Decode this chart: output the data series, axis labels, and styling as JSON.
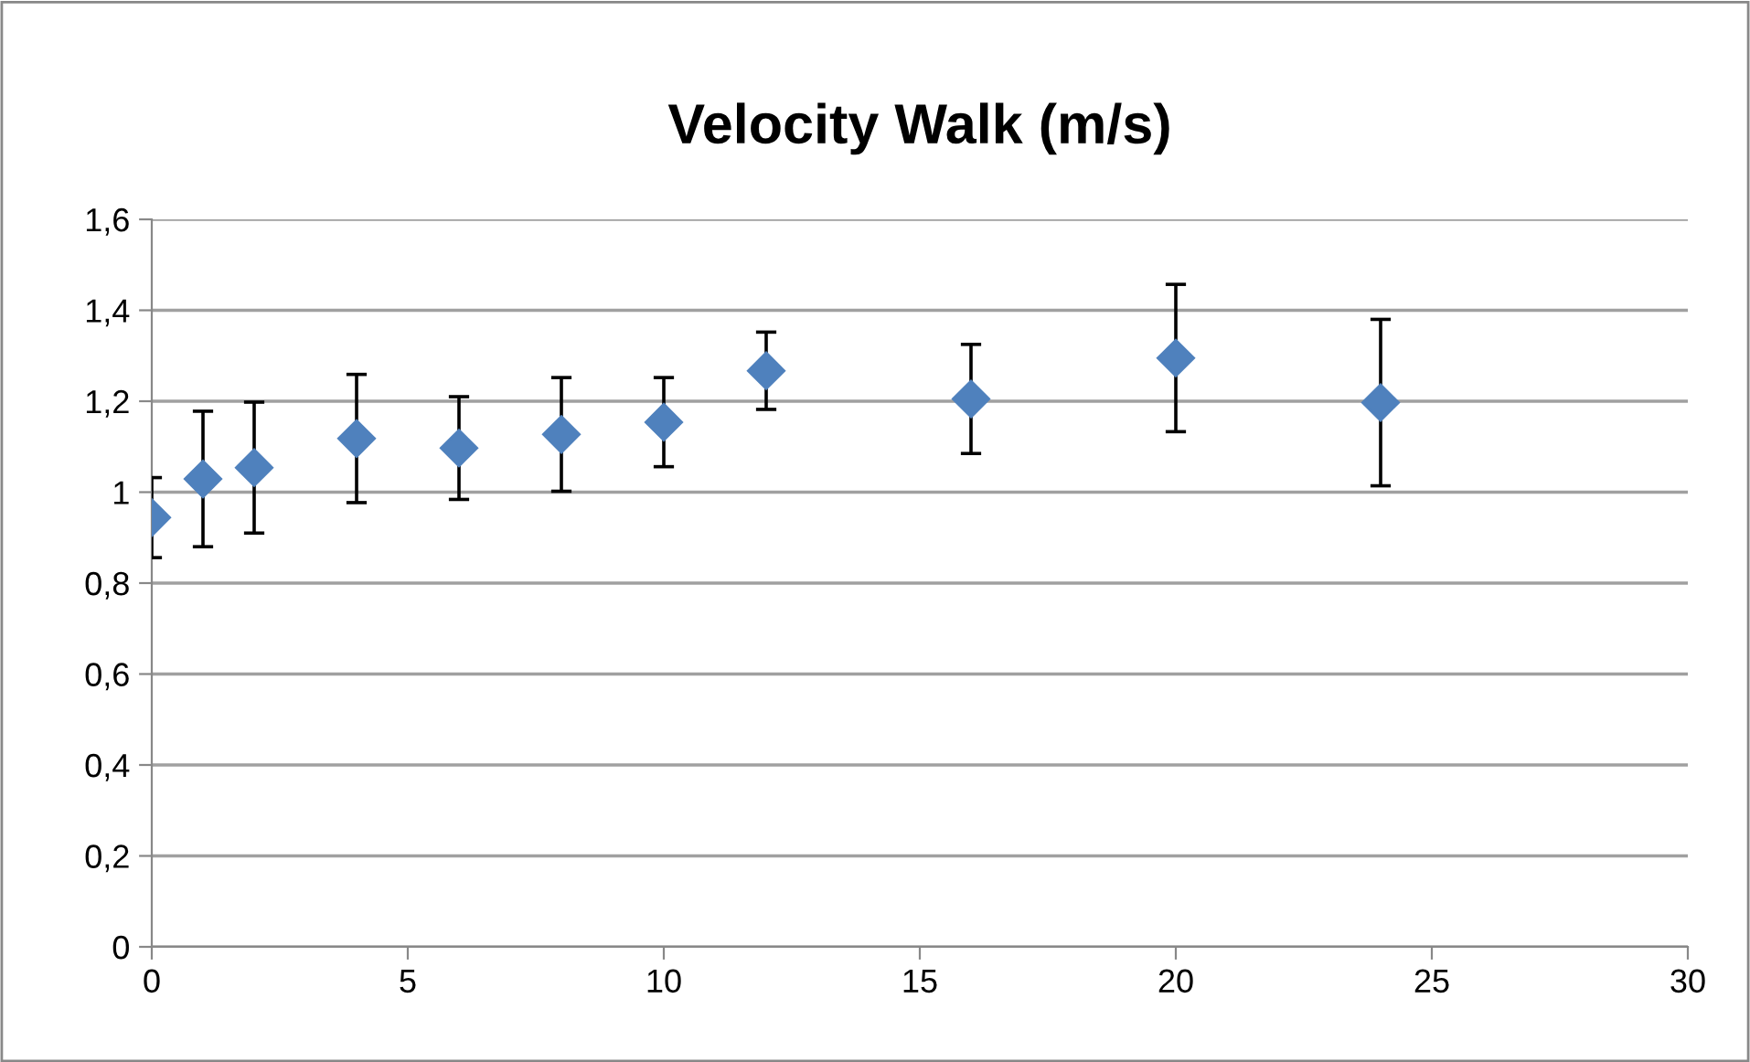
{
  "chart_data": {
    "type": "scatter",
    "title": "Velocity Walk (m/s)",
    "x": [
      0,
      1,
      2,
      4,
      6,
      8,
      10,
      12,
      16,
      20,
      24
    ],
    "series": [
      {
        "color": "#4f81bd",
        "values": [
          0.944,
          1.029,
          1.054,
          1.118,
          1.097,
          1.127,
          1.154,
          1.267,
          1.205,
          1.295,
          1.197
        ],
        "errors": [
          0.088,
          0.149,
          0.144,
          0.141,
          0.113,
          0.125,
          0.098,
          0.085,
          0.12,
          0.162,
          0.183
        ]
      }
    ],
    "marker": "diamond",
    "xlim": [
      0,
      30
    ],
    "xticks": [
      0,
      5,
      10,
      15,
      20,
      25,
      30
    ],
    "ylim": [
      0,
      1.6
    ],
    "yticks": [
      0,
      {
        "value": 0.2,
        "label": "0,2"
      },
      {
        "value": 0.4,
        "label": "0,4"
      },
      {
        "value": 0.6,
        "label": "0,6"
      },
      {
        "value": 0.8,
        "label": "0,8"
      },
      1,
      {
        "value": 1.2,
        "label": "1,2"
      },
      {
        "value": 1.4,
        "label": "1,4"
      },
      {
        "value": 1.6,
        "label": "1,6"
      }
    ],
    "grid": "y",
    "legend": false
  }
}
